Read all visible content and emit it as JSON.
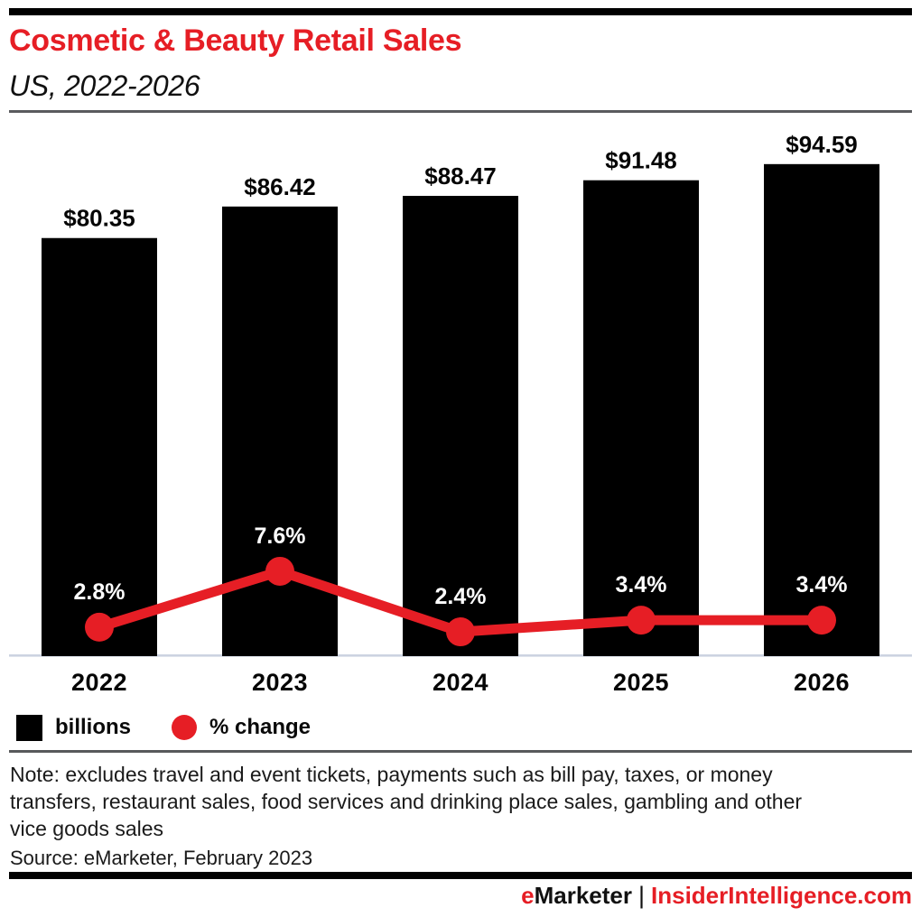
{
  "header": {
    "title": "Cosmetic & Beauty Retail Sales",
    "subtitle": "US, 2022-2026"
  },
  "chart_data": {
    "type": "bar",
    "combo": "bar+line",
    "categories": [
      "2022",
      "2023",
      "2024",
      "2025",
      "2026"
    ],
    "series": [
      {
        "name": "billions",
        "type": "bar",
        "values": [
          80.35,
          86.42,
          88.47,
          91.48,
          94.59
        ],
        "labels": [
          "$80.35",
          "$86.42",
          "$88.47",
          "$91.48",
          "$94.59"
        ],
        "color": "#000000"
      },
      {
        "name": "% change",
        "type": "line",
        "values": [
          2.8,
          7.6,
          2.4,
          3.4,
          3.4
        ],
        "labels": [
          "2.8%",
          "7.6%",
          "2.4%",
          "3.4%",
          "3.4%"
        ],
        "color": "#e61e25"
      }
    ],
    "title": "Cosmetic & Beauty Retail Sales",
    "subtitle": "US, 2022-2026",
    "xlabel": "",
    "ylabel": "",
    "ylim_bars": [
      0,
      103
    ],
    "grid": false,
    "legend_position": "bottom-left",
    "legend": [
      {
        "label": "billions",
        "swatch": "square",
        "color": "#000000"
      },
      {
        "label": "% change",
        "swatch": "circle",
        "color": "#e61e25"
      }
    ]
  },
  "note": {
    "lines": [
      "Note: excludes travel and event tickets, payments such as bill pay, taxes, or money",
      "transfers, restaurant sales, food services and drinking place sales, gambling and other",
      "vice goods sales"
    ],
    "source": "Source: eMarketer, February 2023"
  },
  "footer": {
    "brand_first_letter": "e",
    "brand_rest": "Marketer",
    "separator": "|",
    "site": "InsiderIntelligence.com"
  },
  "colors": {
    "accent_red": "#e61e25",
    "bar_black": "#000000",
    "axis_line": "#ccd3e1",
    "divider_gray": "#58595b",
    "pct_label_white": "#ffffff"
  }
}
